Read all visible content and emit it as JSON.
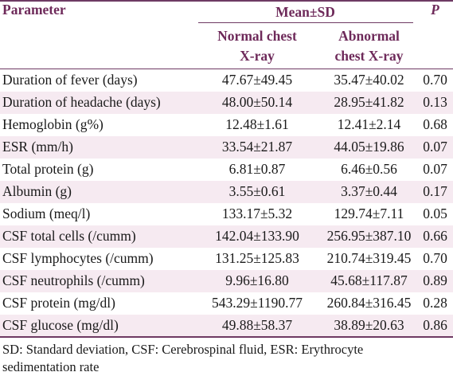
{
  "table": {
    "header": {
      "parameter": "Parameter",
      "mean_sd": "Mean±SD",
      "p": "P",
      "normal": "Normal chest X-ray",
      "abnormal": "Abnormal chest X-ray",
      "normal_line1": "Normal chest",
      "normal_line2": "X-ray",
      "abnormal_line1": "Abnormal",
      "abnormal_line2": "chest X-ray"
    },
    "rows": [
      {
        "parameter": "Duration of fever (days)",
        "normal": "47.67±49.45",
        "abnormal": "35.47±40.02",
        "p": "0.70"
      },
      {
        "parameter": "Duration of headache (days)",
        "normal": "48.00±50.14",
        "abnormal": "28.95±41.82",
        "p": "0.13"
      },
      {
        "parameter": "Hemoglobin (g%)",
        "normal": "12.48±1.61",
        "abnormal": "12.41±2.14",
        "p": "0.68"
      },
      {
        "parameter": "ESR (mm/h)",
        "normal": "33.54±21.87",
        "abnormal": "44.05±19.86",
        "p": "0.07"
      },
      {
        "parameter": "Total protein (g)",
        "normal": "6.81±0.87",
        "abnormal": "6.46±0.56",
        "p": "0.07"
      },
      {
        "parameter": "Albumin (g)",
        "normal": "3.55±0.61",
        "abnormal": "3.37±0.44",
        "p": "0.17"
      },
      {
        "parameter": "Sodium (meq/l)",
        "normal": "133.17±5.32",
        "abnormal": "129.74±7.11",
        "p": "0.05"
      },
      {
        "parameter": "CSF total cells (/cumm)",
        "normal": "142.04±133.90",
        "abnormal": "256.95±387.10",
        "p": "0.66"
      },
      {
        "parameter": "CSF lymphocytes (/cumm)",
        "normal": "131.25±125.83",
        "abnormal": "210.74±319.45",
        "p": "0.70"
      },
      {
        "parameter": "CSF neutrophils (/cumm)",
        "normal": "9.96±16.80",
        "abnormal": "45.68±117.87",
        "p": "0.89"
      },
      {
        "parameter": "CSF protein (mg/dl)",
        "normal": "543.29±1190.77",
        "abnormal": "260.84±316.45",
        "p": "0.28"
      },
      {
        "parameter": "CSF glucose (mg/dl)",
        "normal": "49.88±58.37",
        "abnormal": "38.89±20.63",
        "p": "0.86"
      }
    ]
  },
  "footnote": {
    "line1": "SD: Standard deviation, CSF: Cerebrospinal fluid, ESR: Erythrocyte",
    "line2": "sedimentation rate"
  },
  "colors": {
    "header_text": "#6e2a5a",
    "rule": "#6e3a63",
    "stripe": "#f6eaf1"
  }
}
